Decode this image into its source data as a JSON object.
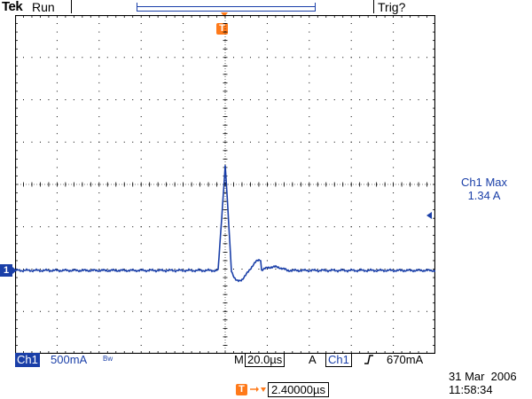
{
  "header": {
    "brand": "Tek",
    "run_status": "Run",
    "trigger_status": "Trig?",
    "trigger_marker_label": "T"
  },
  "screen": {
    "divisions_x": 10,
    "divisions_y": 8,
    "grid_color": "#000000",
    "trace_color": "#1a3fa8",
    "channel_marker_label": "1"
  },
  "measurement": {
    "label": "Ch1 Max",
    "value": "1.34 A"
  },
  "status_bar": {
    "channel": "Ch1",
    "scale": "500mA",
    "bandwidth_icon": "Bw",
    "timebase_prefix": "M",
    "timebase": "20.0µs",
    "trigger_mode": "A",
    "trigger_source": "Ch1",
    "trigger_slope_icon": "rising-edge-icon",
    "trigger_level": "670mA"
  },
  "footer": {
    "delay_marker_label": "T",
    "delay_value": "2.40000µs",
    "date": "31 Mar  2006",
    "time": "11:58:34"
  },
  "colors": {
    "accent_blue": "#1a3fa8",
    "marker_orange": "#ff7a1a"
  }
}
